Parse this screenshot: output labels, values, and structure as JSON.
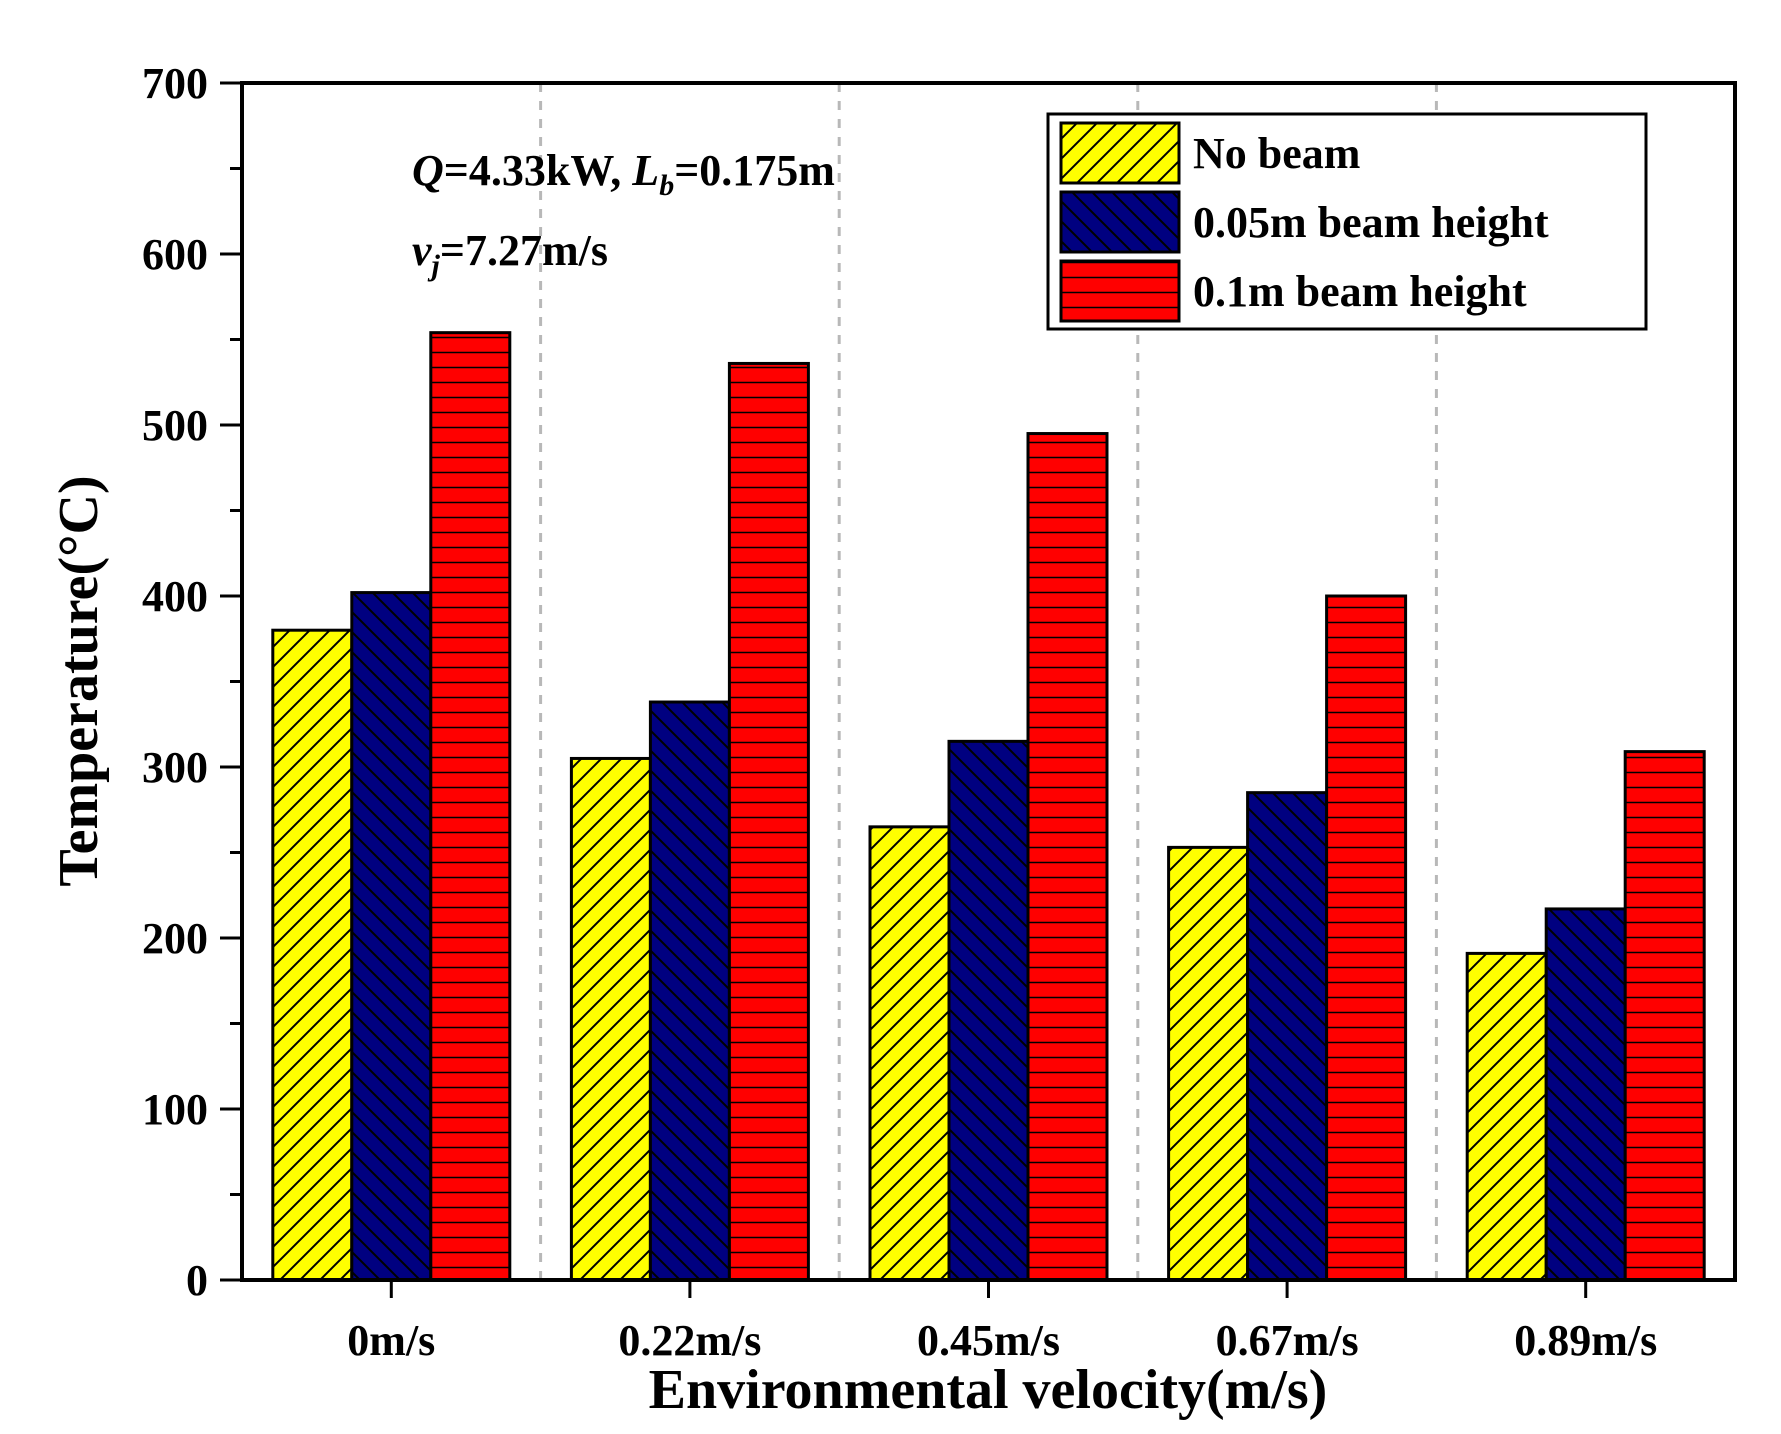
{
  "chart_data": {
    "type": "bar",
    "xlabel": "Environmental velocity(m/s)",
    "ylabel": "Temperature(°C)",
    "ylim": [
      0,
      700
    ],
    "yticks": [
      0,
      100,
      200,
      300,
      400,
      500,
      600,
      700
    ],
    "ytick_labels": [
      "0",
      "100",
      "200",
      "300",
      "400",
      "500",
      "600",
      "700"
    ],
    "categories": [
      "0m/s",
      "0.22m/s",
      "0.45m/s",
      "0.67m/s",
      "0.89m/s"
    ],
    "series": [
      {
        "name": "No beam",
        "color": "#FFFF00",
        "pattern": "diagonal-forward",
        "values": [
          380,
          305,
          265,
          253,
          191
        ]
      },
      {
        "name": "0.05m beam height",
        "color": "#000080",
        "pattern": "diagonal-backward",
        "values": [
          402,
          338,
          315,
          285,
          217
        ]
      },
      {
        "name": "0.1m beam height",
        "color": "#FF0000",
        "pattern": "horizontal",
        "values": [
          554,
          536,
          495,
          400,
          309
        ]
      }
    ],
    "legend_position": "top-right",
    "annotation": {
      "line1": {
        "q": "Q",
        "q_value": "=4.33kW, ",
        "l": "L",
        "l_sub": "b",
        "l_value": "=0.175m"
      },
      "line2": {
        "v": "v",
        "v_sub": "j",
        "v_value": "=7.27m/s"
      }
    }
  }
}
